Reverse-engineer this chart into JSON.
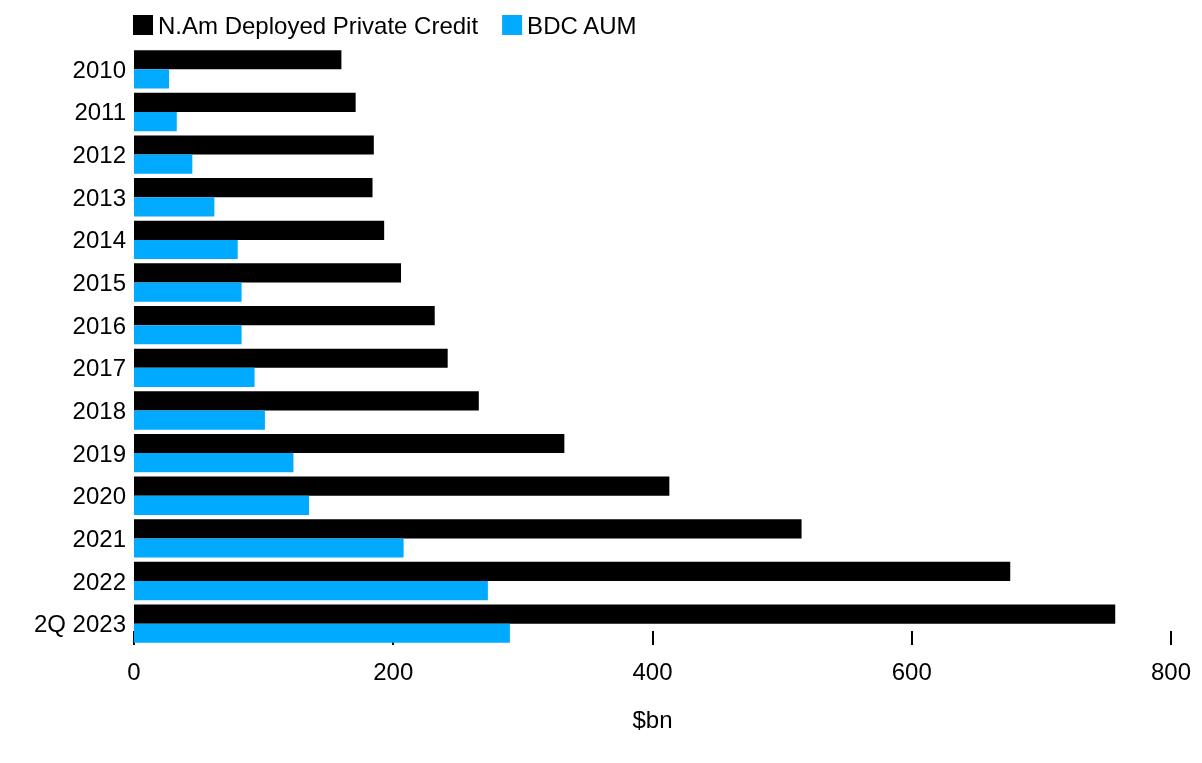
{
  "chart_data": {
    "type": "bar",
    "orientation": "horizontal",
    "xlabel": "$bn",
    "categories": [
      "2010",
      "2011",
      "2012",
      "2013",
      "2014",
      "2015",
      "2016",
      "2017",
      "2018",
      "2019",
      "2020",
      "2021",
      "2022",
      "2Q 2023"
    ],
    "series": [
      {
        "name": "N.Am Deployed Private Credit",
        "color": "#000000",
        "values": [
          160,
          171,
          185,
          184,
          193,
          206,
          232,
          242,
          266,
          332,
          413,
          515,
          676,
          757
        ]
      },
      {
        "name": "BDC AUM",
        "color": "#00aaff",
        "values": [
          27,
          33,
          45,
          62,
          80,
          83,
          83,
          93,
          101,
          123,
          135,
          208,
          273,
          290
        ]
      }
    ],
    "xlim": [
      0,
      800
    ],
    "xticks": [
      0,
      200,
      400,
      600,
      800
    ],
    "grid": false,
    "legend": "top left"
  }
}
